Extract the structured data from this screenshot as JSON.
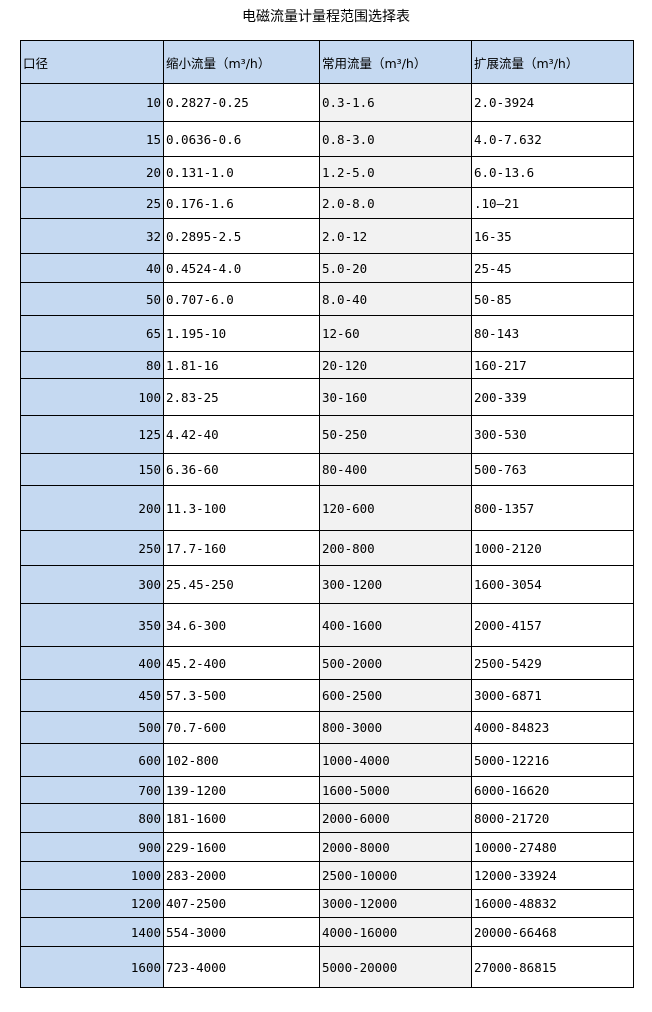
{
  "title": "电磁流量计量程范围选择表",
  "headers": [
    "口径",
    "缩小流量（m³/h）",
    "常用流量（m³/h）",
    "扩展流量（m³/h）"
  ],
  "colors": {
    "header_bg": "#c5d9f1",
    "diameter_col_bg": "#c5d9f1",
    "common_col_bg": "#f2f2f2"
  },
  "rows": [
    [
      "10",
      "0.2827-0.25",
      "0.3-1.6",
      "2.0-3924"
    ],
    [
      "15",
      "0.0636-0.6",
      "0.8-3.0",
      "4.0-7.632"
    ],
    [
      "20",
      "0.131-1.0",
      "1.2-5.0",
      "6.0-13.6"
    ],
    [
      "25",
      "0.176-1.6",
      "2.0-8.0",
      ".10—21"
    ],
    [
      "32",
      "0.2895-2.5",
      "2.0-12",
      "16-35"
    ],
    [
      "40",
      "0.4524-4.0",
      "5.0-20",
      "25-45"
    ],
    [
      "50",
      "0.707-6.0",
      "8.0-40",
      "50-85"
    ],
    [
      "65",
      "1.195-10",
      "12-60",
      "80-143"
    ],
    [
      "80",
      "1.81-16",
      "20-120",
      "160-217"
    ],
    [
      "100",
      "2.83-25",
      "30-160",
      "200-339"
    ],
    [
      "125",
      "4.42-40",
      "50-250",
      "300-530"
    ],
    [
      "150",
      "6.36-60",
      "80-400",
      "500-763"
    ],
    [
      "200",
      "11.3-100",
      "120-600",
      "800-1357"
    ],
    [
      "250",
      "17.7-160",
      "200-800",
      "1000-2120"
    ],
    [
      "300",
      "25.45-250",
      "300-1200",
      "1600-3054"
    ],
    [
      "350",
      "34.6-300",
      "400-1600",
      "2000-4157"
    ],
    [
      "400",
      "45.2-400",
      "500-2000",
      "2500-5429"
    ],
    [
      "450",
      "57.3-500",
      "600-2500",
      "3000-6871"
    ],
    [
      "500",
      "70.7-600",
      "800-3000",
      "4000-84823"
    ],
    [
      "600",
      "102-800",
      "1000-4000",
      "5000-12216"
    ],
    [
      "700",
      "139-1200",
      "1600-5000",
      "6000-16620"
    ],
    [
      "800",
      "181-1600",
      "2000-6000",
      "8000-21720"
    ],
    [
      "900",
      "229-1600",
      "2000-8000",
      "10000-27480"
    ],
    [
      "1000",
      "283-2000",
      "2500-10000",
      "12000-33924"
    ],
    [
      "1200",
      "407-2500",
      "3000-12000",
      "16000-48832"
    ],
    [
      "1400",
      "554-3000",
      "4000-16000",
      "20000-66468"
    ],
    [
      "1600",
      "723-4000",
      "5000-20000",
      "27000-86815"
    ]
  ]
}
